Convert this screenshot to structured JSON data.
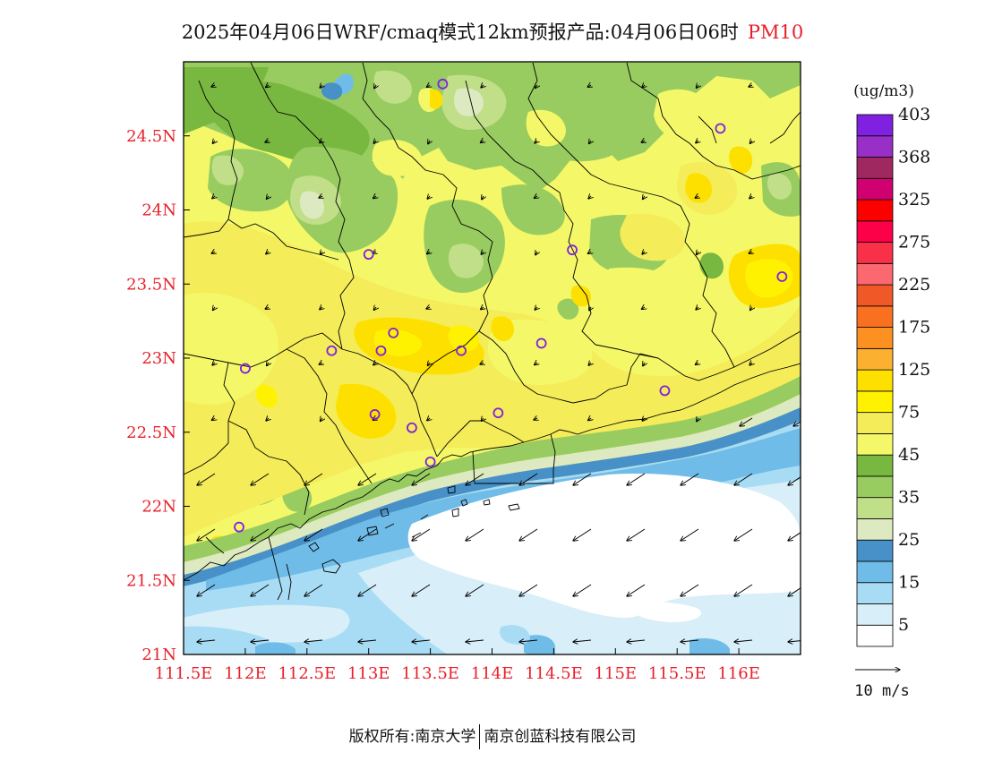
{
  "title": {
    "main": "2025年04月06日WRF/cmaq模式12km预报产品:04月06日06时",
    "pollutant": "PM10"
  },
  "map": {
    "lon_range": [
      111.5,
      116.5
    ],
    "lat_range": [
      21.0,
      25.0
    ],
    "lon_ticks": [
      "111.5E",
      "112E",
      "112.5E",
      "113E",
      "113.5E",
      "114E",
      "114.5E",
      "115E",
      "115.5E",
      "116E"
    ],
    "lat_ticks": [
      "21N",
      "21.5N",
      "22N",
      "22.5N",
      "23N",
      "23.5N",
      "24N",
      "24.5N"
    ],
    "tick_color": "#e8202a",
    "stations": [
      {
        "lon": 113.6,
        "lat": 24.85
      },
      {
        "lon": 115.85,
        "lat": 24.55
      },
      {
        "lon": 113.0,
        "lat": 23.7
      },
      {
        "lon": 114.65,
        "lat": 23.73
      },
      {
        "lon": 116.35,
        "lat": 23.55
      },
      {
        "lon": 113.2,
        "lat": 23.17
      },
      {
        "lon": 112.7,
        "lat": 23.05
      },
      {
        "lon": 113.1,
        "lat": 23.05
      },
      {
        "lon": 113.75,
        "lat": 23.05
      },
      {
        "lon": 114.4,
        "lat": 23.1
      },
      {
        "lon": 112.0,
        "lat": 22.93
      },
      {
        "lon": 115.4,
        "lat": 22.78
      },
      {
        "lon": 113.05,
        "lat": 22.62
      },
      {
        "lon": 113.35,
        "lat": 22.53
      },
      {
        "lon": 114.05,
        "lat": 22.63
      },
      {
        "lon": 113.5,
        "lat": 22.3
      },
      {
        "lon": 111.95,
        "lat": 21.86
      }
    ]
  },
  "colorbar": {
    "unit_label": "(ug/m3)",
    "colors": [
      "#ffffff",
      "#d8eef8",
      "#a8dcf4",
      "#70bce8",
      "#4890c8",
      "#dde9c0",
      "#c0df88",
      "#98cc60",
      "#78b840",
      "#f4f868",
      "#f4ec58",
      "#fff200",
      "#fde000",
      "#fcb030",
      "#fc9020",
      "#f87020",
      "#f05828",
      "#fc6870",
      "#f83048",
      "#fc0048",
      "#fc0000",
      "#d00070",
      "#a02860",
      "#9830c8",
      "#8020e0"
    ],
    "labels": [
      {
        "text": "5",
        "index": 1
      },
      {
        "text": "15",
        "index": 3
      },
      {
        "text": "25",
        "index": 5
      },
      {
        "text": "35",
        "index": 7
      },
      {
        "text": "45",
        "index": 9
      },
      {
        "text": "75",
        "index": 11
      },
      {
        "text": "125",
        "index": 13
      },
      {
        "text": "175",
        "index": 15
      },
      {
        "text": "225",
        "index": 17
      },
      {
        "text": "275",
        "index": 19
      },
      {
        "text": "325",
        "index": 21
      },
      {
        "text": "368",
        "index": 23
      },
      {
        "text": "403",
        "index": 25
      }
    ]
  },
  "wind_legend": {
    "label": "10 m/s"
  },
  "footer": {
    "left": "版权所有:南京大学",
    "right": "南京创蓝科技有限公司"
  }
}
